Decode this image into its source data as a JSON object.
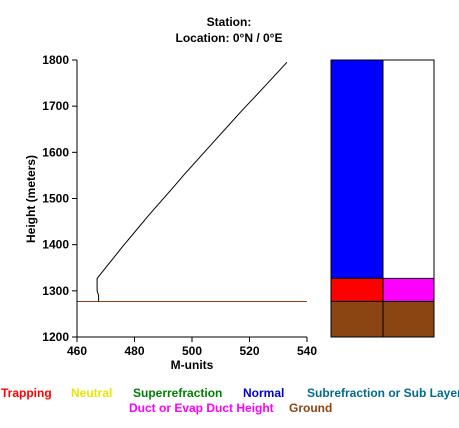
{
  "header": {
    "station_line": "Station:",
    "location_line": "Location:   0°N /   0°E"
  },
  "chart_data": {
    "type": "line",
    "xlabel": "M-units",
    "ylabel": "Height (meters)",
    "xlim": [
      460,
      540
    ],
    "ylim": [
      1200,
      1800
    ],
    "xticks": [
      460,
      480,
      500,
      520,
      540
    ],
    "yticks": [
      1200,
      1300,
      1400,
      1500,
      1600,
      1700,
      1800
    ],
    "xtick_labels": [
      "460",
      "480",
      "500",
      "520",
      "540"
    ],
    "ytick_labels": [
      "1200",
      "1300",
      "1400",
      "1500",
      "1600",
      "1700",
      "1800"
    ],
    "ground_height": 1277,
    "series": [
      {
        "x": [
          467.5,
          467.5,
          467,
          467,
          476,
          485,
          494,
          497,
          507,
          517,
          525,
          533
        ],
        "y": [
          1277,
          1290,
          1300,
          1327,
          1397,
          1464,
          1528,
          1550,
          1619,
          1688,
          1741,
          1795
        ]
      }
    ],
    "grid": false,
    "duct_layers": [
      {
        "band": "normal",
        "column": "left",
        "from": 1327,
        "to": 1800,
        "color": "#0000ff"
      },
      {
        "band": "trapping",
        "column": "left",
        "from": 1277,
        "to": 1327,
        "color": "#ff0000"
      },
      {
        "band": "ground",
        "column": "left",
        "from": 1200,
        "to": 1277,
        "color": "#8b4513"
      },
      {
        "band": "duct",
        "column": "right",
        "from": 1277,
        "to": 1327,
        "color": "#ff00ff"
      },
      {
        "band": "ground",
        "column": "right",
        "from": 1200,
        "to": 1277,
        "color": "#8b4513"
      }
    ]
  },
  "legend": {
    "trapping": {
      "label": "Trapping",
      "color": "#ff0000"
    },
    "neutral": {
      "label": "Neutral",
      "color": "#e6e600"
    },
    "superrefraction": {
      "label": "Superrefraction",
      "color": "#008000"
    },
    "normal": {
      "label": "Normal",
      "color": "#0000cc"
    },
    "subrefraction": {
      "label": "Subrefraction or Sub Layer",
      "color": "#006b8f"
    },
    "duct": {
      "label": "Duct or Evap Duct Height",
      "color": "#ff00ff"
    },
    "ground": {
      "label": "Ground",
      "color": "#8b4513"
    }
  }
}
